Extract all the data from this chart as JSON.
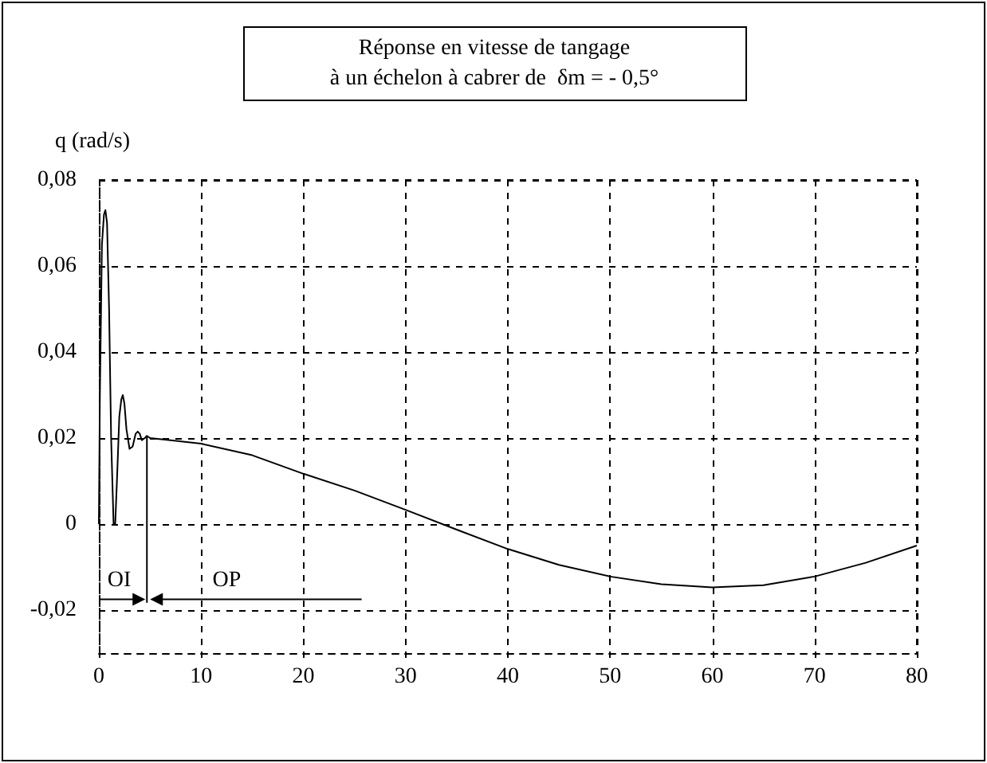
{
  "chart_data": {
    "type": "line",
    "title": "Réponse en vitesse de tangage\nà un échelon à cabrer de  δm = - 0,5°",
    "ylabel": "q (rad/s)",
    "series": [
      {
        "color": "#000000",
        "x": [
          0,
          0.1,
          0.3,
          0.5,
          0.64,
          0.8,
          1.0,
          1.2,
          1.44,
          1.6,
          1.8,
          2.0,
          2.2,
          2.34,
          2.5,
          2.7,
          3.0,
          3.3,
          3.6,
          3.8,
          4.0,
          4.2,
          4.5,
          4.7,
          5,
          7,
          10,
          15,
          20,
          25,
          30,
          35,
          40,
          45,
          50,
          55,
          60,
          65,
          70,
          75,
          80
        ],
        "values": [
          0,
          0.03,
          0.065,
          0.072,
          0.073,
          0.07,
          0.05,
          0.02,
          0,
          0,
          0.012,
          0.025,
          0.029,
          0.03,
          0.028,
          0.022,
          0.0175,
          0.018,
          0.021,
          0.0215,
          0.021,
          0.0195,
          0.02,
          0.0205,
          0.02,
          0.0195,
          0.0187,
          0.016,
          0.0117,
          0.0078,
          0.0033,
          -0.0013,
          -0.0058,
          -0.0095,
          -0.0122,
          -0.014,
          -0.0147,
          -0.0142,
          -0.0122,
          -0.009,
          -0.005
        ]
      }
    ],
    "xlim": [
      0,
      80
    ],
    "xticks": [
      0,
      10,
      20,
      30,
      40,
      50,
      60,
      70,
      80
    ],
    "ylim": [
      -0.03,
      0.08
    ],
    "yticks": [
      {
        "value": -0.02,
        "label": "-0,02"
      },
      {
        "value": 0,
        "label": "0"
      },
      {
        "value": 0.02,
        "label": "0,02"
      },
      {
        "value": 0.04,
        "label": "0,04"
      },
      {
        "value": 0.06,
        "label": "0,06"
      },
      {
        "value": 0.08,
        "label": "0,08"
      }
    ],
    "grid": true,
    "marker": "none",
    "line_style": "solid",
    "annotations": [
      "OI",
      "OP"
    ]
  }
}
